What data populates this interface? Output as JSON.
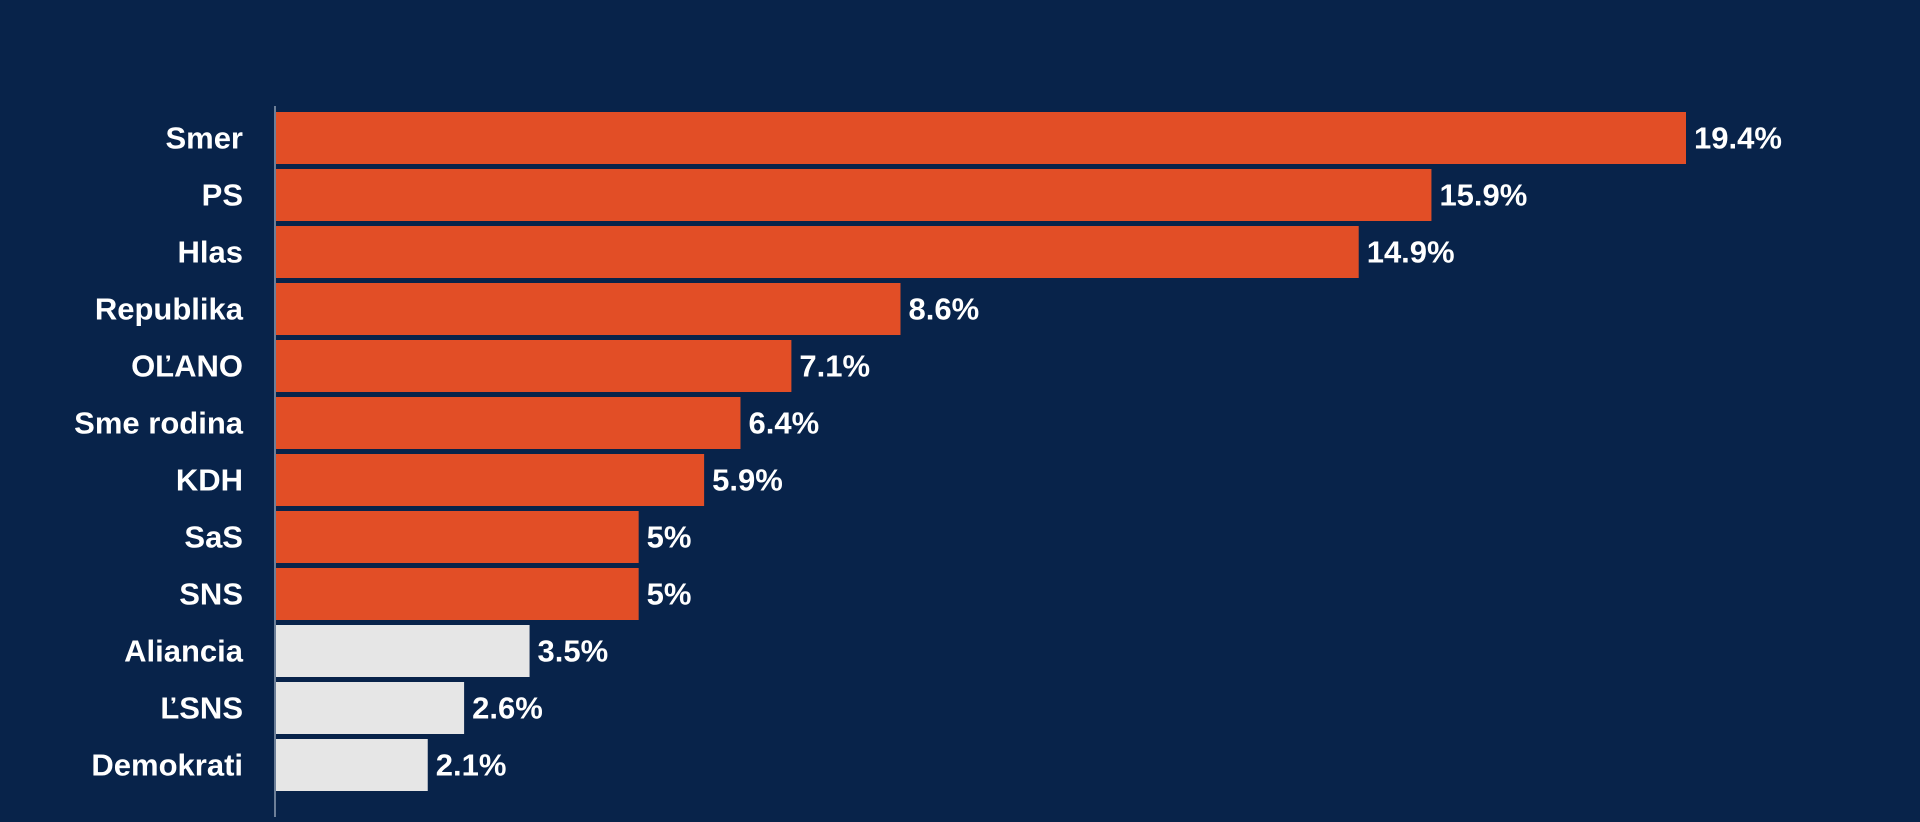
{
  "chart_data": {
    "type": "bar",
    "orientation": "horizontal",
    "categories": [
      "Smer",
      "PS",
      "Hlas",
      "Republika",
      "OĽANO",
      "Sme rodina",
      "KDH",
      "SaS",
      "SNS",
      "Aliancia",
      "ĽSNS",
      "Demokrati"
    ],
    "values": [
      19.4,
      15.9,
      14.9,
      8.6,
      7.1,
      6.4,
      5.9,
      5,
      5,
      3.5,
      2.6,
      2.1
    ],
    "value_labels": [
      "19.4%",
      "15.9%",
      "14.9%",
      "8.6%",
      "7.1%",
      "6.4%",
      "5.9%",
      "5%",
      "5%",
      "3.5%",
      "2.6%",
      "2.1%"
    ],
    "highlight": [
      true,
      true,
      true,
      true,
      true,
      true,
      true,
      true,
      true,
      false,
      false,
      false
    ],
    "title": "",
    "xlabel": "",
    "ylabel": "",
    "xlim": [
      0,
      19.4
    ],
    "grid": false,
    "legend": "none"
  },
  "colors": {
    "background": "#08234a",
    "bar_highlight": "#e24e26",
    "bar_muted": "#e6e6e6",
    "text": "#ffffff",
    "axis": "#6d7f98"
  }
}
